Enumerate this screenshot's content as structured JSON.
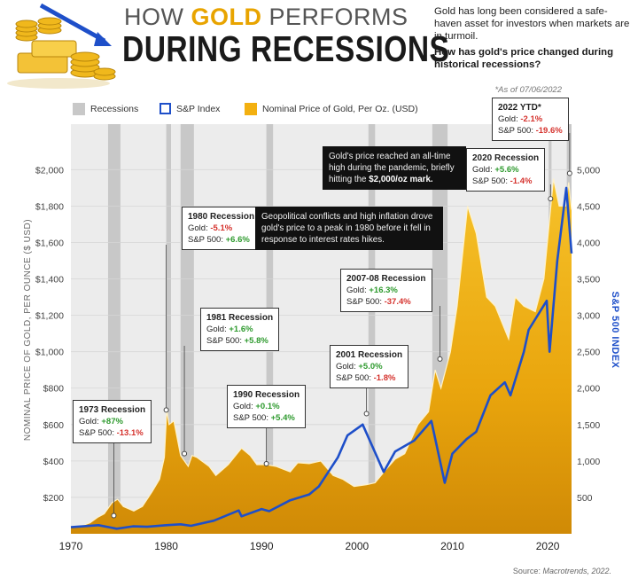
{
  "header": {
    "title_prefix": "HOW ",
    "title_gold": "GOLD",
    "title_suffix": " PERFORMS",
    "title_line2": "DURING RECESSIONS",
    "intro": "Gold has long been considered a safe-haven asset for investors when markets are in turmoil.",
    "question": "How has gold's price changed during historical recessions?"
  },
  "legend": {
    "recessions": "Recessions",
    "sp_index": "S&P Index",
    "gold_price": "Nominal Price of Gold, Per Oz. (USD)"
  },
  "as_of": "*As of 07/06/2022",
  "source_label": "Source: ",
  "source_name": "Macrotrends, 2022.",
  "colors": {
    "gold": "#f3b010",
    "gold_line": "#fff2c8",
    "sp_line": "#1e4fc9",
    "recession_band": "#c8c8c8",
    "negative": "#d5322d",
    "positive": "#2e9a2e"
  },
  "callouts": [
    {
      "title": "1973 Recession",
      "gold_label": "Gold: ",
      "gold": "+87%",
      "sp_label": "S&P 500: ",
      "sp": "-13.1%"
    },
    {
      "title": "1980 Recession",
      "gold_label": "Gold: ",
      "gold": "-5.1%",
      "sp_label": "S&P 500: ",
      "sp": "+6.6%"
    },
    {
      "title": "1981 Recession",
      "gold_label": "Gold: ",
      "gold": "+1.6%",
      "sp_label": "S&P 500: ",
      "sp": "+5.8%"
    },
    {
      "title": "1990 Recession",
      "gold_label": "Gold: ",
      "gold": "+0.1%",
      "sp_label": "S&P 500: ",
      "sp": "+5.4%"
    },
    {
      "title": "2001 Recession",
      "gold_label": "Gold: ",
      "gold": "+5.0%",
      "sp_label": "S&P 500: ",
      "sp": "-1.8%"
    },
    {
      "title": "2007-08 Recession",
      "gold_label": "Gold: ",
      "gold": "+16.3%",
      "sp_label": "S&P 500: ",
      "sp": "-37.4%"
    },
    {
      "title": "2020 Recession",
      "gold_label": "Gold: ",
      "gold": "+5.6%",
      "sp_label": "S&P 500: ",
      "sp": "-1.4%"
    },
    {
      "title": "2022 YTD*",
      "gold_label": "Gold: ",
      "gold": "-2.1%",
      "sp_label": "S&P 500: ",
      "sp": "-19.6%"
    }
  ],
  "notes": {
    "pandemic_pre": "Gold's price reached an all-time high during the pandemic, briefly hitting the ",
    "pandemic_bold": "$2,000/oz mark.",
    "peak1980": "Geopolitical conflicts and high inflation drove gold's price to a peak in 1980 before it fell in response to interest rates hikes."
  },
  "chart_data": {
    "type": "area",
    "xlim": [
      1970,
      2022.5
    ],
    "x_ticks": [
      1970,
      1980,
      1990,
      2000,
      2010,
      2020
    ],
    "ylabel": "NOMINAL PRICE OF GOLD, PER OUNCE ($ USD)",
    "ylim": [
      0,
      2250
    ],
    "y_ticks": [
      200,
      400,
      600,
      800,
      1000,
      1200,
      1400,
      1600,
      1800,
      2000
    ],
    "y_tick_labels": [
      "$200",
      "$400",
      "$600",
      "$800",
      "$1,000",
      "$1,200",
      "$1,400",
      "$1,600",
      "$1,800",
      "$2,000"
    ],
    "y2label": "S&P 500 INDEX",
    "y2lim": [
      0,
      5625
    ],
    "y2_ticks": [
      500,
      1000,
      1500,
      2000,
      2500,
      3000,
      3500,
      4000,
      4500,
      5000
    ],
    "y2_tick_labels": [
      "500",
      "1,000",
      "1,500",
      "2,000",
      "2,500",
      "3,000",
      "3,500",
      "4,000",
      "4,500",
      "5,000"
    ],
    "recessions": [
      [
        1973.9,
        1975.2
      ],
      [
        1980.0,
        1980.5
      ],
      [
        1981.5,
        1982.9
      ],
      [
        1990.5,
        1991.2
      ],
      [
        2001.2,
        2001.9
      ],
      [
        2007.9,
        2009.5
      ],
      [
        2020.1,
        2020.4
      ],
      [
        2022.0,
        2022.5
      ]
    ],
    "series": [
      {
        "name": "Nominal Price of Gold, Per Oz. (USD)",
        "axis": "left",
        "x": [
          1970,
          1971,
          1972,
          1972.8,
          1973.5,
          1974.3,
          1974.9,
          1975.5,
          1976.6,
          1977.5,
          1978.5,
          1979.3,
          1979.8,
          1980.05,
          1980.3,
          1980.8,
          1981.5,
          1982.3,
          1982.7,
          1983.2,
          1984.5,
          1985.2,
          1986.5,
          1987.9,
          1988.8,
          1989.5,
          1990.5,
          1991.5,
          1993,
          1993.8,
          1995,
          1996.2,
          1997.5,
          1998.5,
          1999.7,
          2001,
          2001.9,
          2003,
          2004,
          2005,
          2006.4,
          2007.5,
          2008.2,
          2008.8,
          2009.8,
          2010.5,
          2011.6,
          2012.5,
          2013.6,
          2014.5,
          2015.9,
          2016.6,
          2017.5,
          2018.7,
          2019.6,
          2020.6,
          2021.2,
          2021.9,
          2022.2,
          2022.5
        ],
        "y": [
          36,
          42,
          60,
          90,
          110,
          170,
          190,
          150,
          125,
          150,
          230,
          300,
          420,
          680,
          600,
          620,
          430,
          370,
          430,
          420,
          370,
          320,
          380,
          470,
          430,
          380,
          380,
          370,
          340,
          390,
          385,
          400,
          320,
          300,
          260,
          270,
          280,
          350,
          410,
          440,
          600,
          670,
          900,
          800,
          1000,
          1250,
          1800,
          1650,
          1300,
          1250,
          1070,
          1300,
          1250,
          1220,
          1400,
          1950,
          1800,
          1800,
          1930,
          1780
        ]
      },
      {
        "name": "S&P Index",
        "axis": "right",
        "x": [
          1970,
          1972.9,
          1974.8,
          1976.5,
          1978,
          1980,
          1981.5,
          1982.6,
          1985,
          1987.6,
          1987.9,
          1990,
          1990.8,
          1993,
          1995,
          1996,
          1997,
          1998,
          1999,
          2000.6,
          2002.8,
          2004,
          2006,
          2007.8,
          2009.2,
          2010,
          2011.5,
          2012.5,
          2014,
          2015.5,
          2016.1,
          2017.5,
          2018,
          2019.9,
          2020.2,
          2021,
          2021.95,
          2022.5
        ],
        "y": [
          90,
          118,
          70,
          102,
          96,
          118,
          130,
          110,
          180,
          320,
          240,
          340,
          310,
          460,
          540,
          650,
          850,
          1050,
          1350,
          1500,
          850,
          1130,
          1280,
          1550,
          700,
          1100,
          1300,
          1400,
          1900,
          2080,
          1900,
          2500,
          2800,
          3200,
          2500,
          3750,
          4750,
          3850
        ]
      }
    ]
  }
}
